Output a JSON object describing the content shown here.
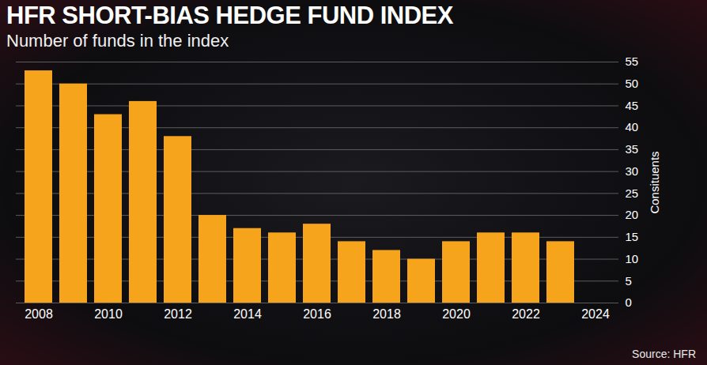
{
  "chart_data": {
    "type": "bar",
    "title": "HFR SHORT-BIAS HEDGE FUND INDEX",
    "subtitle": "Number of funds in the index",
    "y_label": "Consituents",
    "source": "Source: HFR",
    "categories": [
      "2008",
      null,
      "2010",
      null,
      "2012",
      null,
      "2014",
      null,
      "2016",
      null,
      "2018",
      null,
      "2020",
      null,
      "2022",
      null,
      "2024"
    ],
    "values": [
      53,
      50,
      43,
      46,
      38,
      20,
      17,
      16,
      18,
      14,
      12,
      10,
      14,
      16,
      16,
      14,
      null
    ],
    "color": "#f7a41d",
    "ylim": [
      0,
      55
    ],
    "yticks": [
      0,
      5,
      10,
      15,
      20,
      25,
      30,
      35,
      40,
      45,
      50,
      55
    ],
    "grid": true
  }
}
